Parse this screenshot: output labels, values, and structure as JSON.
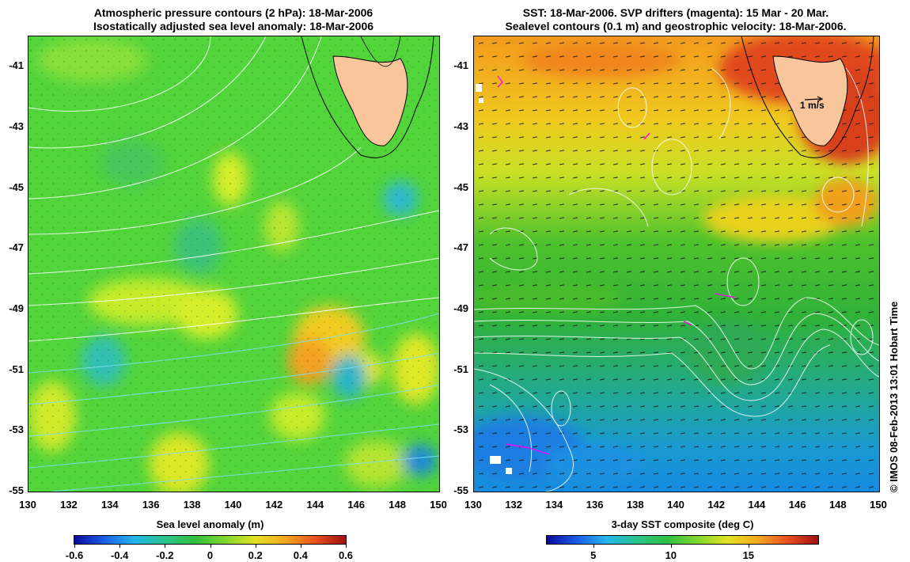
{
  "left_panel": {
    "title_line1": "Atmospheric pressure contours (2 hPa): 18-Mar-2006",
    "title_line2": "Isostatically adjusted sea level anomaly: 18-Mar-2006",
    "colorbar_title": "Sea level anomaly (m)",
    "colorbar_ticks": [
      "-0.6",
      "-0.4",
      "-0.2",
      "0",
      "0.2",
      "0.4",
      "0.6"
    ],
    "colorbar_values": [
      -0.6,
      -0.4,
      -0.2,
      0,
      0.2,
      0.4,
      0.6
    ],
    "colorbar_range": [
      -0.6,
      0.6
    ]
  },
  "right_panel": {
    "title_line1": "SST: 18-Mar-2006. SVP drifters (magenta): 15 Mar - 20 Mar.",
    "title_line2": "Sealevel contours (0.1 m) and geostrophic velocity: 18-Mar-2006.",
    "colorbar_title": "3-day SST composite (deg C)",
    "colorbar_ticks": [
      "5",
      "10",
      "15"
    ],
    "colorbar_values": [
      5,
      10,
      15
    ],
    "colorbar_range": [
      2,
      19.5
    ],
    "scale_label": "1 m/s"
  },
  "axes": {
    "lon_ticks": [
      "130",
      "132",
      "134",
      "136",
      "138",
      "140",
      "142",
      "144",
      "146",
      "148",
      "150"
    ],
    "lat_ticks": [
      "-41",
      "-43",
      "-45",
      "-47",
      "-49",
      "-51",
      "-53",
      "-55"
    ],
    "lon_range": [
      130,
      150
    ],
    "lat_range": [
      -55,
      -40
    ]
  },
  "credit": "© IMOS 08-Feb-2013 13:01 Hobart Time",
  "colors": {
    "land": "#f9c59a",
    "contour": "#ffffff",
    "drifter": "#ff00ff"
  }
}
